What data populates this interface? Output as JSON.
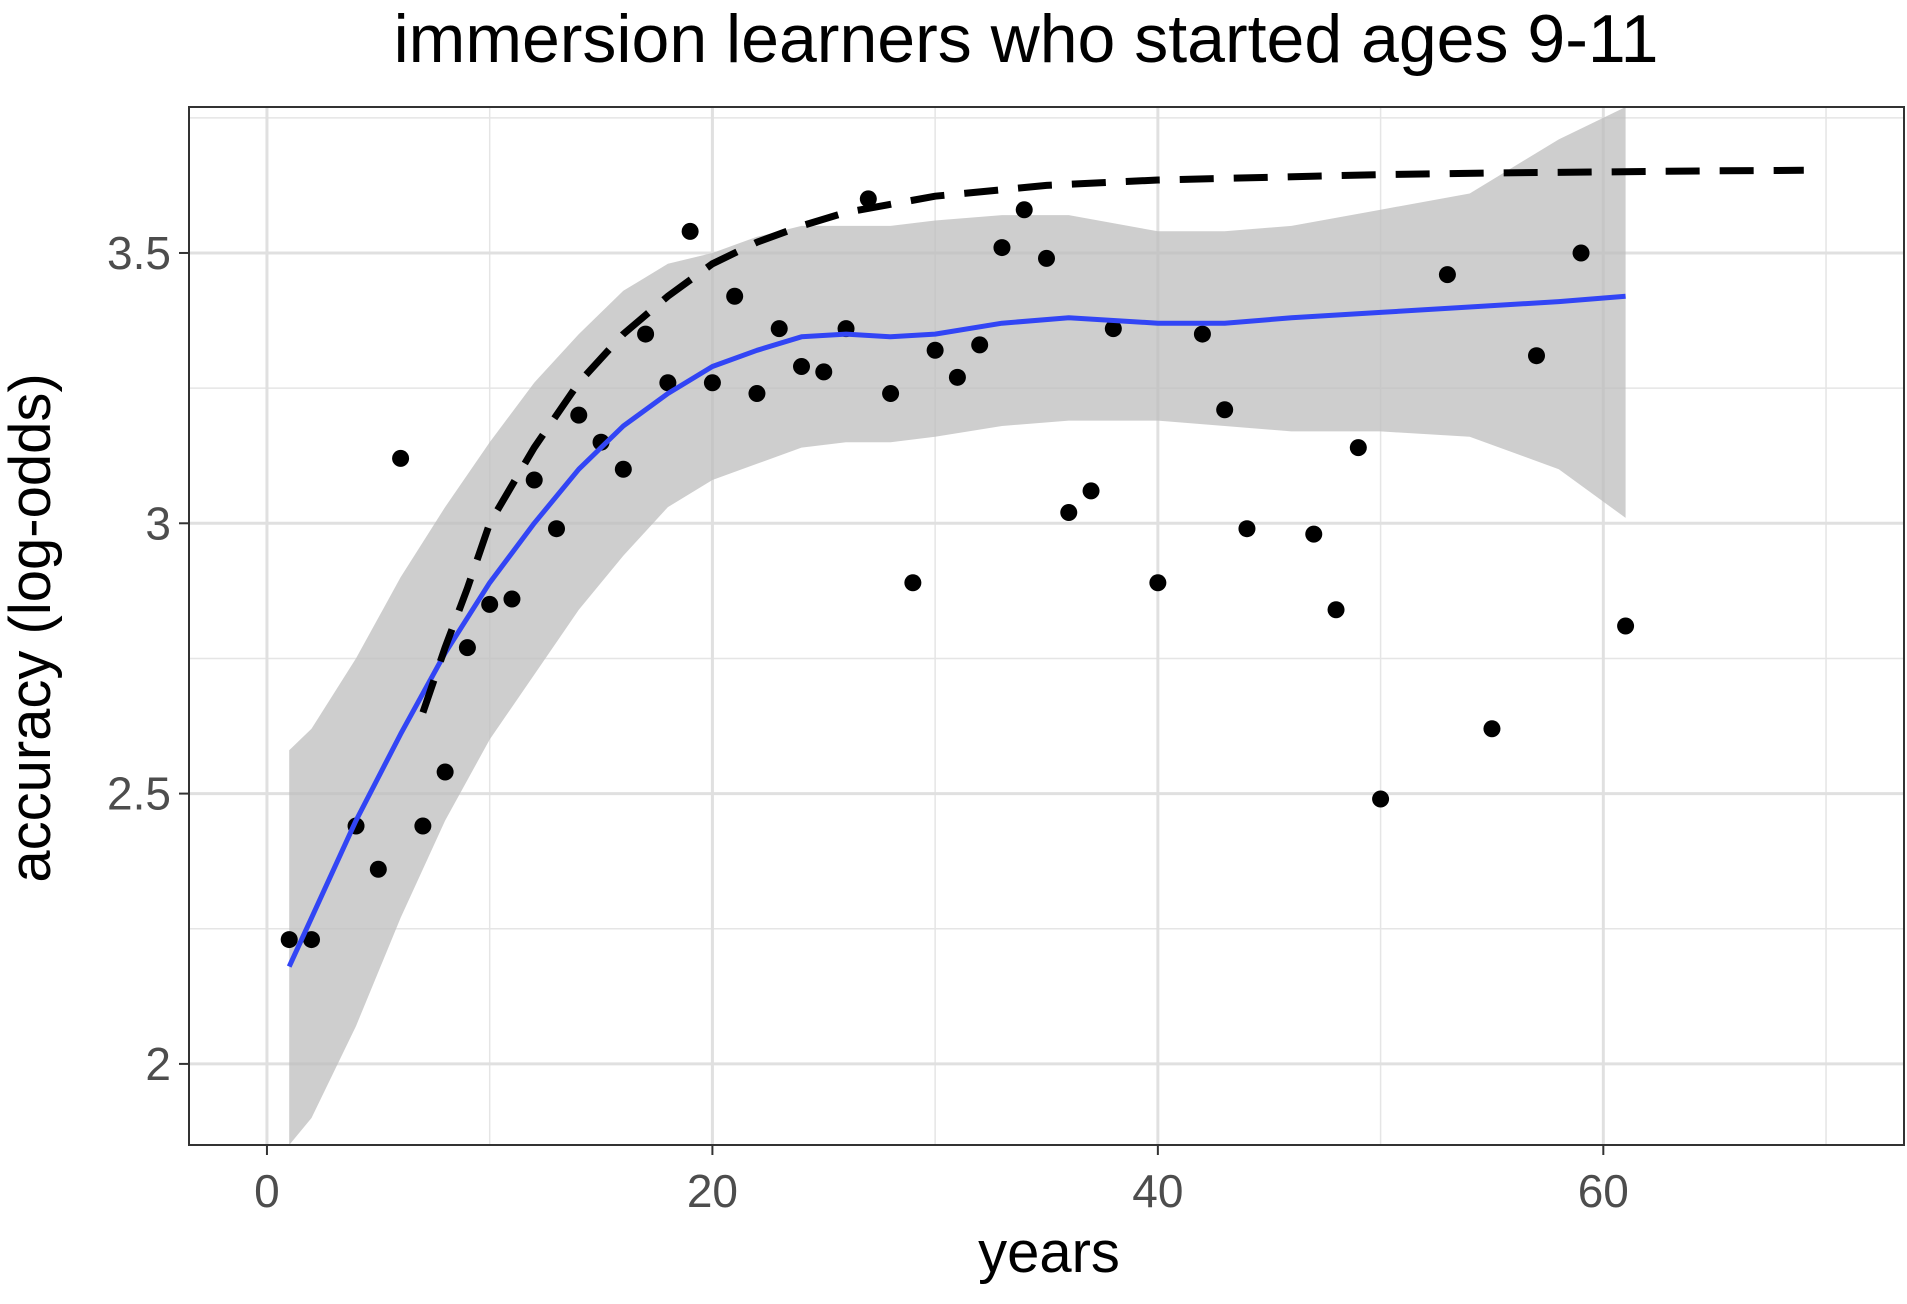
{
  "chart_data": {
    "type": "scatter",
    "title": "immersion learners who started ages 9-11",
    "xlabel": "years",
    "ylabel": "accuracy (log-odds)",
    "xlim": [
      -3.5,
      73.5
    ],
    "ylim": [
      1.85,
      3.77
    ],
    "x_ticks": [
      0,
      20,
      40,
      60
    ],
    "y_ticks": [
      2,
      2.5,
      3,
      3.5
    ],
    "x_tick_labels": [
      "0",
      "20",
      "40",
      "60"
    ],
    "y_tick_labels": [
      "2",
      "2.5",
      "3",
      "3.5"
    ],
    "x_minor_ticks": [
      10,
      30,
      50,
      70
    ],
    "y_minor_ticks": [
      2.25,
      2.75,
      3.25,
      3.75
    ],
    "grid": true,
    "legend": "none",
    "colors": {
      "points": "#000000",
      "smooth_line": "#3245f5",
      "ribbon": "#bdbdbd",
      "dashed_line": "#000000",
      "grid": "#e5e5e5",
      "panel_border": "#333333"
    },
    "points": [
      {
        "x": 1,
        "y": 2.23
      },
      {
        "x": 2,
        "y": 2.23
      },
      {
        "x": 4,
        "y": 2.44
      },
      {
        "x": 5,
        "y": 2.36
      },
      {
        "x": 6,
        "y": 3.12
      },
      {
        "x": 7,
        "y": 2.44
      },
      {
        "x": 8,
        "y": 2.54
      },
      {
        "x": 9,
        "y": 2.77
      },
      {
        "x": 10,
        "y": 2.85
      },
      {
        "x": 11,
        "y": 2.86
      },
      {
        "x": 12,
        "y": 3.08
      },
      {
        "x": 13,
        "y": 2.99
      },
      {
        "x": 14,
        "y": 3.2
      },
      {
        "x": 15,
        "y": 3.15
      },
      {
        "x": 16,
        "y": 3.1
      },
      {
        "x": 17,
        "y": 3.35
      },
      {
        "x": 18,
        "y": 3.26
      },
      {
        "x": 19,
        "y": 3.54
      },
      {
        "x": 20,
        "y": 3.26
      },
      {
        "x": 21,
        "y": 3.42
      },
      {
        "x": 22,
        "y": 3.24
      },
      {
        "x": 23,
        "y": 3.36
      },
      {
        "x": 24,
        "y": 3.29
      },
      {
        "x": 25,
        "y": 3.28
      },
      {
        "x": 26,
        "y": 3.36
      },
      {
        "x": 27,
        "y": 3.6
      },
      {
        "x": 28,
        "y": 3.24
      },
      {
        "x": 29,
        "y": 2.89
      },
      {
        "x": 30,
        "y": 3.32
      },
      {
        "x": 31,
        "y": 3.27
      },
      {
        "x": 32,
        "y": 3.33
      },
      {
        "x": 33,
        "y": 3.51
      },
      {
        "x": 34,
        "y": 3.58
      },
      {
        "x": 35,
        "y": 3.49
      },
      {
        "x": 36,
        "y": 3.02
      },
      {
        "x": 37,
        "y": 3.06
      },
      {
        "x": 38,
        "y": 3.36
      },
      {
        "x": 40,
        "y": 2.89
      },
      {
        "x": 42,
        "y": 3.35
      },
      {
        "x": 43,
        "y": 3.21
      },
      {
        "x": 44,
        "y": 2.99
      },
      {
        "x": 47,
        "y": 2.98
      },
      {
        "x": 48,
        "y": 2.84
      },
      {
        "x": 49,
        "y": 3.14
      },
      {
        "x": 50,
        "y": 2.49
      },
      {
        "x": 53,
        "y": 3.46
      },
      {
        "x": 55,
        "y": 2.62
      },
      {
        "x": 57,
        "y": 3.31
      },
      {
        "x": 59,
        "y": 3.5
      },
      {
        "x": 61,
        "y": 2.81
      }
    ],
    "smooth": {
      "x": [
        1,
        2,
        4,
        6,
        8,
        10,
        12,
        14,
        16,
        18,
        20,
        22,
        24,
        26,
        28,
        30,
        33,
        36,
        40,
        43,
        46,
        50,
        54,
        58,
        61
      ],
      "y": [
        2.18,
        2.27,
        2.45,
        2.61,
        2.76,
        2.89,
        3.0,
        3.1,
        3.18,
        3.24,
        3.29,
        3.32,
        3.345,
        3.35,
        3.345,
        3.35,
        3.37,
        3.38,
        3.37,
        3.37,
        3.38,
        3.39,
        3.4,
        3.41,
        3.42
      ],
      "ymin": [
        1.83,
        1.9,
        2.07,
        2.27,
        2.45,
        2.6,
        2.72,
        2.84,
        2.94,
        3.03,
        3.08,
        3.11,
        3.14,
        3.15,
        3.15,
        3.16,
        3.18,
        3.19,
        3.19,
        3.18,
        3.17,
        3.17,
        3.16,
        3.1,
        3.01
      ],
      "ymax": [
        2.58,
        2.62,
        2.75,
        2.9,
        3.03,
        3.15,
        3.26,
        3.35,
        3.43,
        3.48,
        3.5,
        3.53,
        3.55,
        3.55,
        3.55,
        3.56,
        3.57,
        3.57,
        3.54,
        3.54,
        3.55,
        3.58,
        3.61,
        3.71,
        3.77
      ]
    },
    "dashed_curve": {
      "x": [
        7,
        8,
        9,
        10,
        12,
        14,
        16,
        18,
        20,
        22,
        24,
        26,
        28,
        30,
        35,
        40,
        45,
        50,
        55,
        60,
        65,
        69
      ],
      "y": [
        2.65,
        2.77,
        2.88,
        3.0,
        3.14,
        3.26,
        3.35,
        3.42,
        3.48,
        3.52,
        3.55,
        3.575,
        3.59,
        3.605,
        3.625,
        3.635,
        3.64,
        3.645,
        3.648,
        3.65,
        3.652,
        3.653
      ]
    }
  }
}
